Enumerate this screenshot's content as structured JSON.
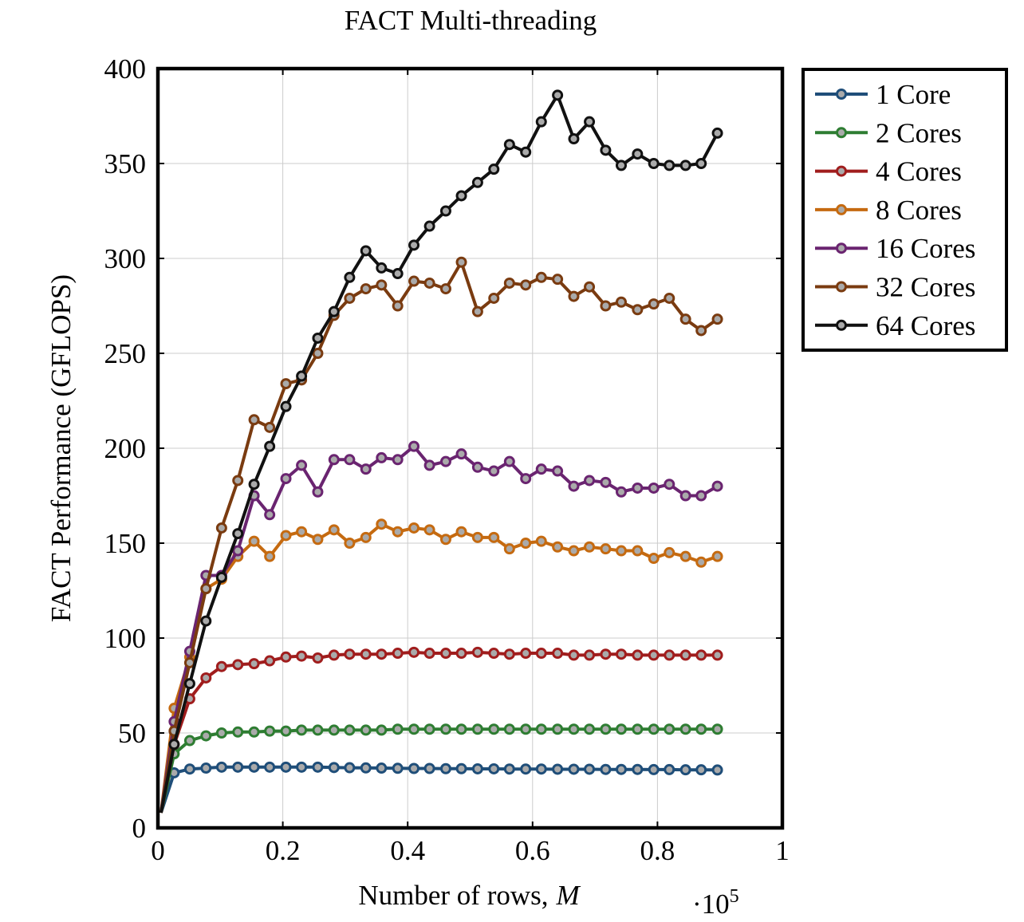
{
  "chart_data": {
    "type": "line",
    "title": "FACT Multi-threading",
    "xlabel": "Number of rows, M",
    "xlabel_main": "Number of rows,",
    "xlabel_var": "M",
    "ylabel": "FACT Performance (GFLOPS)",
    "x_multiplier_base": "·10",
    "x_multiplier_exp": "5",
    "xlim": [
      0,
      1
    ],
    "ylim": [
      0,
      400
    ],
    "xticks": [
      0,
      0.2,
      0.4,
      0.6,
      0.8,
      1
    ],
    "xtick_labels": [
      "0",
      "0.2",
      "0.4",
      "0.6",
      "0.8",
      "1"
    ],
    "yticks": [
      0,
      50,
      100,
      150,
      200,
      250,
      300,
      350,
      400
    ],
    "ytick_labels": [
      "0",
      "50",
      "100",
      "150",
      "200",
      "250",
      "300",
      "350",
      "400"
    ],
    "grid": true,
    "legend_position": "outside-right-top",
    "series": [
      {
        "name": "1 Core",
        "color": "#1f4e79",
        "marker_x": [
          0.026,
          0.051,
          0.077,
          0.102,
          0.128,
          0.154,
          0.179,
          0.205,
          0.23,
          0.256,
          0.282,
          0.307,
          0.333,
          0.358,
          0.384,
          0.41,
          0.435,
          0.461,
          0.486,
          0.512,
          0.538,
          0.563,
          0.589,
          0.614,
          0.64,
          0.666,
          0.691,
          0.717,
          0.742,
          0.768,
          0.794,
          0.819,
          0.845,
          0.87,
          0.896
        ],
        "marker_y": [
          29,
          31,
          31.5,
          32,
          32,
          32,
          32,
          32,
          32,
          32,
          31.8,
          31.7,
          31.6,
          31.5,
          31.4,
          31.3,
          31.3,
          31.2,
          31.2,
          31.1,
          31.1,
          31,
          31,
          31,
          30.9,
          30.9,
          30.9,
          30.8,
          30.8,
          30.8,
          30.7,
          30.7,
          30.6,
          30.6,
          30.5
        ]
      },
      {
        "name": "2 Cores",
        "color": "#2e7d32",
        "marker_x": [
          0.026,
          0.051,
          0.077,
          0.102,
          0.128,
          0.154,
          0.179,
          0.205,
          0.23,
          0.256,
          0.282,
          0.307,
          0.333,
          0.358,
          0.384,
          0.41,
          0.435,
          0.461,
          0.486,
          0.512,
          0.538,
          0.563,
          0.589,
          0.614,
          0.64,
          0.666,
          0.691,
          0.717,
          0.742,
          0.768,
          0.794,
          0.819,
          0.845,
          0.87,
          0.896
        ],
        "marker_y": [
          39,
          46,
          48.5,
          50,
          50.5,
          50.5,
          51,
          51,
          51.5,
          51.5,
          51.5,
          51.5,
          51.5,
          51.5,
          52,
          52,
          52,
          52,
          52,
          52,
          52,
          52,
          52,
          52,
          52,
          52,
          52,
          52,
          52,
          52,
          52,
          52,
          52,
          52,
          52
        ]
      },
      {
        "name": "4 Cores",
        "color": "#a01d1d",
        "marker_x": [
          0.026,
          0.051,
          0.077,
          0.102,
          0.128,
          0.154,
          0.179,
          0.205,
          0.23,
          0.256,
          0.282,
          0.307,
          0.333,
          0.358,
          0.384,
          0.41,
          0.435,
          0.461,
          0.486,
          0.512,
          0.538,
          0.563,
          0.589,
          0.614,
          0.64,
          0.666,
          0.691,
          0.717,
          0.742,
          0.768,
          0.794,
          0.819,
          0.845,
          0.87,
          0.896
        ],
        "marker_y": [
          44,
          68,
          79,
          85,
          86,
          86.5,
          88,
          90,
          90.5,
          89.5,
          91,
          91.5,
          91.5,
          91.5,
          92,
          92.5,
          92,
          92,
          92,
          92.5,
          92,
          91.5,
          92,
          92,
          92,
          91,
          91,
          91.5,
          91.5,
          91,
          91,
          91,
          91,
          91,
          91
        ]
      },
      {
        "name": "8 Cores",
        "color": "#c56a10",
        "marker_x": [
          0.026,
          0.051,
          0.077,
          0.102,
          0.128,
          0.154,
          0.179,
          0.205,
          0.23,
          0.256,
          0.282,
          0.307,
          0.333,
          0.358,
          0.384,
          0.41,
          0.435,
          0.461,
          0.486,
          0.512,
          0.538,
          0.563,
          0.589,
          0.614,
          0.64,
          0.666,
          0.691,
          0.717,
          0.742,
          0.768,
          0.794,
          0.819,
          0.845,
          0.87,
          0.896
        ],
        "marker_y": [
          63,
          90,
          126,
          131,
          143,
          151,
          143,
          154,
          156,
          152,
          157,
          150,
          153,
          160,
          156,
          158,
          157,
          152,
          156,
          153,
          153,
          147,
          150,
          151,
          148,
          146,
          148,
          147,
          146,
          146,
          142,
          145,
          143,
          140,
          143
        ]
      },
      {
        "name": "16 Cores",
        "color": "#6a2470",
        "marker_x": [
          0.026,
          0.051,
          0.077,
          0.102,
          0.128,
          0.154,
          0.179,
          0.205,
          0.23,
          0.256,
          0.282,
          0.307,
          0.333,
          0.358,
          0.384,
          0.41,
          0.435,
          0.461,
          0.486,
          0.512,
          0.538,
          0.563,
          0.589,
          0.614,
          0.64,
          0.666,
          0.691,
          0.717,
          0.742,
          0.768,
          0.794,
          0.819,
          0.845,
          0.87,
          0.896
        ],
        "marker_y": [
          56,
          93,
          133,
          133,
          146,
          175,
          165,
          184,
          191,
          177,
          194,
          194,
          189,
          195,
          194,
          201,
          191,
          193,
          197,
          190,
          188,
          193,
          184,
          189,
          188,
          180,
          183,
          182,
          177,
          179,
          179,
          181,
          175,
          175,
          180
        ]
      },
      {
        "name": "32 Cores",
        "color": "#7a3b10",
        "marker_x": [
          0.026,
          0.051,
          0.077,
          0.102,
          0.128,
          0.154,
          0.179,
          0.205,
          0.23,
          0.256,
          0.282,
          0.307,
          0.333,
          0.358,
          0.384,
          0.41,
          0.435,
          0.461,
          0.486,
          0.512,
          0.538,
          0.563,
          0.589,
          0.614,
          0.64,
          0.666,
          0.691,
          0.717,
          0.742,
          0.768,
          0.794,
          0.819,
          0.845,
          0.87,
          0.896
        ],
        "marker_y": [
          51,
          87,
          126,
          158,
          183,
          215,
          211,
          234,
          236,
          250,
          270,
          279,
          284,
          286,
          275,
          288,
          287,
          284,
          298,
          272,
          279,
          287,
          286,
          290,
          289,
          280,
          285,
          275,
          277,
          273,
          276,
          279,
          268,
          262,
          268
        ]
      },
      {
        "name": "64 Cores",
        "color": "#111111",
        "marker_x": [
          0.026,
          0.051,
          0.077,
          0.102,
          0.128,
          0.154,
          0.179,
          0.205,
          0.23,
          0.256,
          0.282,
          0.307,
          0.333,
          0.358,
          0.384,
          0.41,
          0.435,
          0.461,
          0.486,
          0.512,
          0.538,
          0.563,
          0.589,
          0.614,
          0.64,
          0.666,
          0.691,
          0.717,
          0.742,
          0.768,
          0.794,
          0.819,
          0.845,
          0.87,
          0.896
        ],
        "marker_y": [
          44,
          76,
          109,
          132,
          155,
          181,
          201,
          222,
          238,
          258,
          272,
          290,
          304,
          295,
          292,
          307,
          317,
          325,
          333,
          340,
          347,
          360,
          356,
          372,
          386,
          363,
          372,
          357,
          349,
          355,
          350,
          349,
          349,
          350,
          366
        ]
      }
    ]
  }
}
